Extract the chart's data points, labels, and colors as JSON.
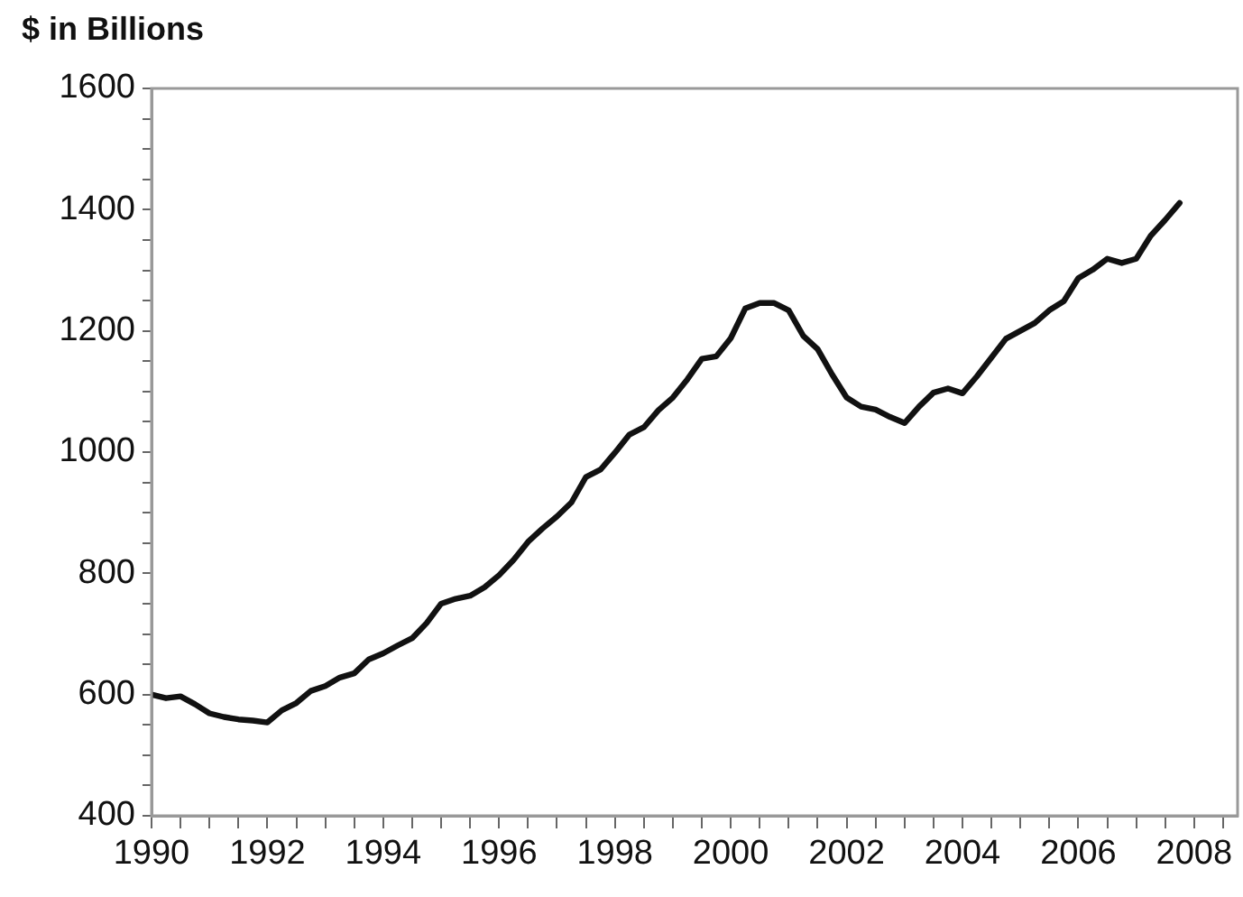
{
  "chart_data": {
    "type": "line",
    "ylabel": "$ in Billions",
    "x": [
      1990,
      1990.25,
      1990.5,
      1990.75,
      1991,
      1991.25,
      1991.5,
      1991.75,
      1992,
      1992.25,
      1992.5,
      1992.75,
      1993,
      1993.25,
      1993.5,
      1993.75,
      1994,
      1994.25,
      1994.5,
      1994.75,
      1995,
      1995.25,
      1995.5,
      1995.75,
      1996,
      1996.25,
      1996.5,
      1996.75,
      1997,
      1997.25,
      1997.5,
      1997.75,
      1998,
      1998.25,
      1998.5,
      1998.75,
      1999,
      1999.25,
      1999.5,
      1999.75,
      2000,
      2000.25,
      2000.5,
      2000.75,
      2001,
      2001.25,
      2001.5,
      2001.75,
      2002,
      2002.25,
      2002.5,
      2002.75,
      2003,
      2003.25,
      2003.5,
      2003.75,
      2004,
      2004.25,
      2004.5,
      2004.75,
      2005,
      2005.25,
      2005.5,
      2005.75,
      2006,
      2006.25,
      2006.5,
      2006.75,
      2007,
      2007.25,
      2007.5,
      2007.75
    ],
    "series": [
      {
        "color": "#111111",
        "values": [
          600,
          594,
          597,
          584,
          569,
          563,
          559,
          557,
          554,
          574,
          586,
          606,
          614,
          628,
          635,
          658,
          668,
          681,
          693,
          718,
          750,
          758,
          763,
          777,
          797,
          822,
          852,
          874,
          894,
          917,
          959,
          971,
          999,
          1029,
          1041,
          1069,
          1090,
          1120,
          1154,
          1158,
          1188,
          1237,
          1246,
          1246,
          1234,
          1192,
          1170,
          1128,
          1090,
          1075,
          1070,
          1058,
          1048,
          1075,
          1098,
          1105,
          1097,
          1125,
          1156,
          1187,
          1200,
          1213,
          1234,
          1249,
          1287,
          1301,
          1319,
          1312,
          1319,
          1357,
          1383,
          1411
        ]
      }
    ],
    "xlim": [
      1990,
      2008.75
    ],
    "xticks": [
      1990,
      {
        "value": 1990.5,
        "label": null
      },
      {
        "value": 1991,
        "label": null
      },
      {
        "value": 1991.5,
        "label": null
      },
      1992,
      {
        "value": 1992.5,
        "label": null
      },
      {
        "value": 1993,
        "label": null
      },
      {
        "value": 1993.5,
        "label": null
      },
      1994,
      {
        "value": 1994.5,
        "label": null
      },
      {
        "value": 1995,
        "label": null
      },
      {
        "value": 1995.5,
        "label": null
      },
      1996,
      {
        "value": 1996.5,
        "label": null
      },
      {
        "value": 1997,
        "label": null
      },
      {
        "value": 1997.5,
        "label": null
      },
      1998,
      {
        "value": 1998.5,
        "label": null
      },
      {
        "value": 1999,
        "label": null
      },
      {
        "value": 1999.5,
        "label": null
      },
      2000,
      {
        "value": 2000.5,
        "label": null
      },
      {
        "value": 2001,
        "label": null
      },
      {
        "value": 2001.5,
        "label": null
      },
      2002,
      {
        "value": 2002.5,
        "label": null
      },
      {
        "value": 2003,
        "label": null
      },
      {
        "value": 2003.5,
        "label": null
      },
      2004,
      {
        "value": 2004.5,
        "label": null
      },
      {
        "value": 2005,
        "label": null
      },
      {
        "value": 2005.5,
        "label": null
      },
      2006,
      {
        "value": 2006.5,
        "label": null
      },
      {
        "value": 2007,
        "label": null
      },
      {
        "value": 2007.5,
        "label": null
      },
      2008,
      {
        "value": 2008.5,
        "label": null
      }
    ],
    "ylim": [
      400,
      1600
    ],
    "yticks": [
      400,
      {
        "value": 450,
        "label": null
      },
      {
        "value": 500,
        "label": null
      },
      {
        "value": 550,
        "label": null
      },
      600,
      {
        "value": 650,
        "label": null
      },
      {
        "value": 700,
        "label": null
      },
      {
        "value": 750,
        "label": null
      },
      800,
      {
        "value": 850,
        "label": null
      },
      {
        "value": 900,
        "label": null
      },
      {
        "value": 950,
        "label": null
      },
      1000,
      {
        "value": 1050,
        "label": null
      },
      {
        "value": 1100,
        "label": null
      },
      {
        "value": 1150,
        "label": null
      },
      1200,
      {
        "value": 1250,
        "label": null
      },
      {
        "value": 1300,
        "label": null
      },
      {
        "value": 1350,
        "label": null
      },
      1400,
      {
        "value": 1450,
        "label": null
      },
      {
        "value": 1500,
        "label": null
      },
      {
        "value": 1550,
        "label": null
      },
      1600
    ],
    "grid": false,
    "legend": false,
    "marker": "none",
    "line_style": "solid"
  }
}
